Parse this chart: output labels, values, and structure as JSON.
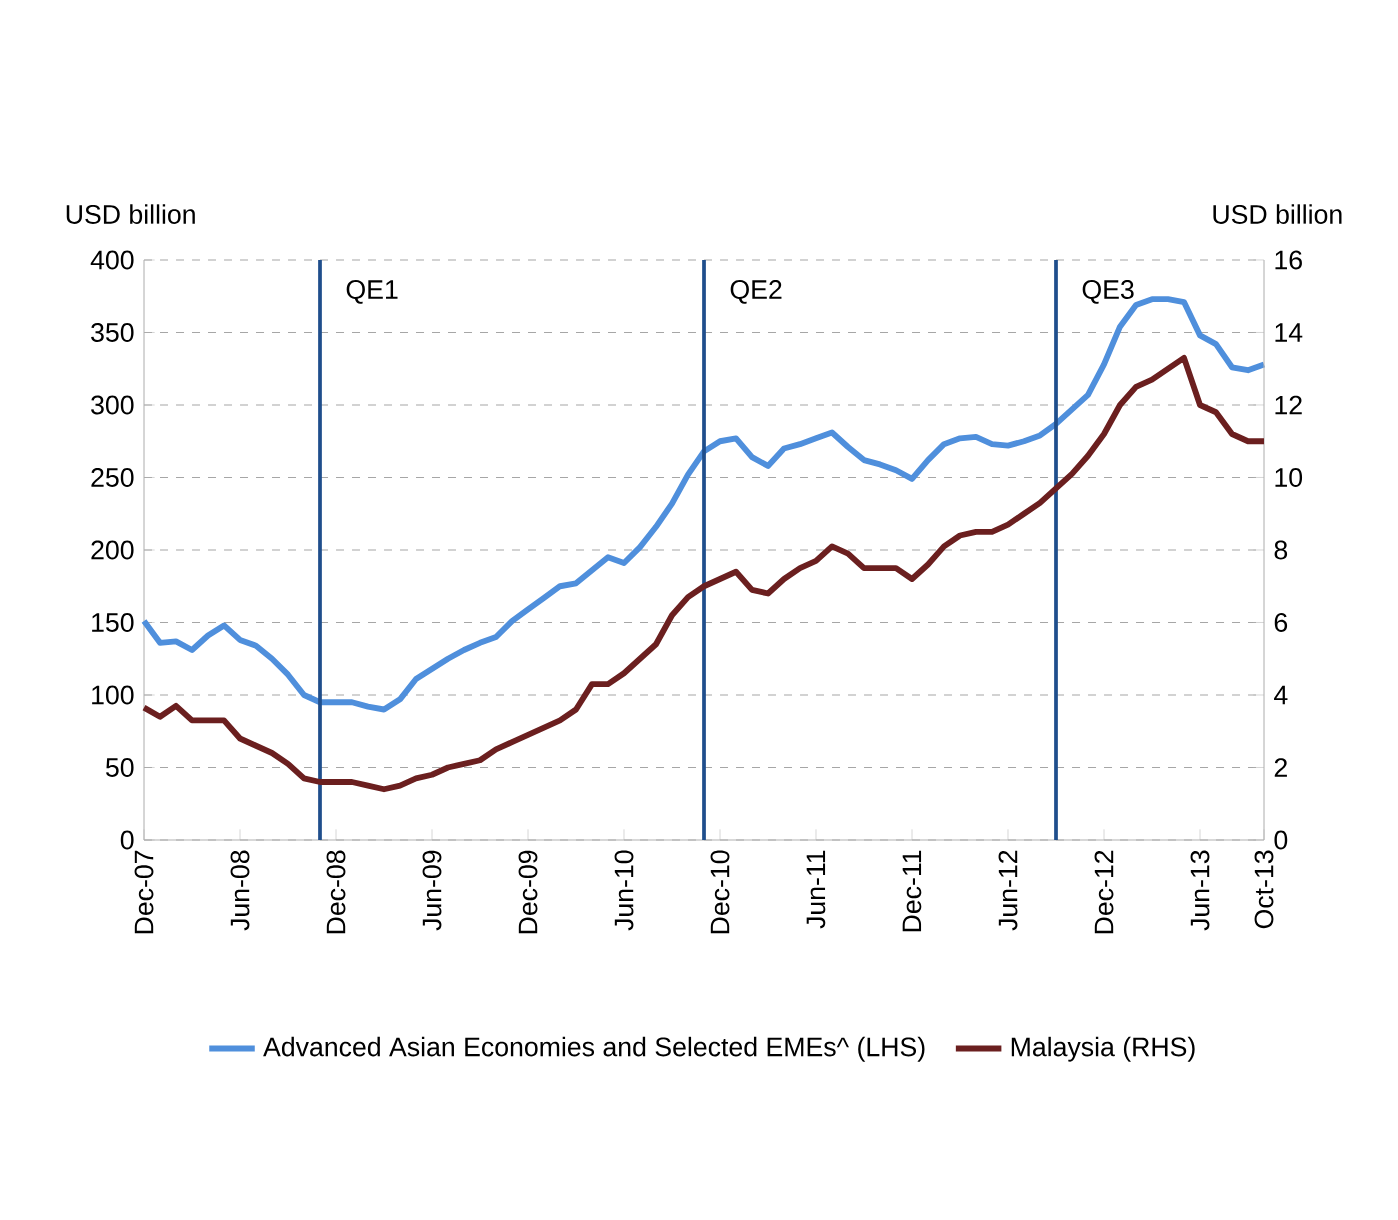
{
  "chart_data": {
    "type": "line",
    "ylabel": "USD billion",
    "y2label": "USD billion",
    "x": [
      "2007-12",
      "2008-01",
      "2008-02",
      "2008-03",
      "2008-04",
      "2008-05",
      "2008-06",
      "2008-07",
      "2008-08",
      "2008-09",
      "2008-10",
      "2008-11",
      "2008-12",
      "2009-01",
      "2009-02",
      "2009-03",
      "2009-04",
      "2009-05",
      "2009-06",
      "2009-07",
      "2009-08",
      "2009-09",
      "2009-10",
      "2009-11",
      "2009-12",
      "2010-01",
      "2010-02",
      "2010-03",
      "2010-04",
      "2010-05",
      "2010-06",
      "2010-07",
      "2010-08",
      "2010-09",
      "2010-10",
      "2010-11",
      "2010-12",
      "2011-01",
      "2011-02",
      "2011-03",
      "2011-04",
      "2011-05",
      "2011-06",
      "2011-07",
      "2011-08",
      "2011-09",
      "2011-10",
      "2011-11",
      "2011-12",
      "2012-01",
      "2012-02",
      "2012-03",
      "2012-04",
      "2012-05",
      "2012-06",
      "2012-07",
      "2012-08",
      "2012-09",
      "2012-10",
      "2012-11",
      "2012-12",
      "2013-01",
      "2013-02",
      "2013-03",
      "2013-04",
      "2013-05",
      "2013-06",
      "2013-07",
      "2013-08",
      "2013-09",
      "2013-10"
    ],
    "series": [
      {
        "name": "Advanced Asian Economies and Selected EMEs^ (LHS)",
        "color": "#4f8fdc",
        "values": [
          151,
          136,
          137,
          131,
          141,
          148,
          138,
          134,
          125,
          114,
          100,
          95,
          95,
          95,
          92,
          90,
          97,
          111,
          118,
          125,
          131,
          136,
          140,
          151,
          159,
          167,
          175,
          177,
          186,
          195,
          191,
          202,
          216,
          232,
          252,
          268,
          275,
          277,
          264,
          258,
          270,
          273,
          277,
          281,
          271,
          262,
          259,
          255,
          249,
          262,
          273,
          277,
          278,
          273,
          272,
          275,
          279,
          287,
          297,
          307,
          328,
          354,
          369,
          373,
          373,
          371,
          348,
          342,
          326,
          324,
          328
        ]
      },
      {
        "name": "Malaysia (RHS)",
        "color": "#6b1f1f",
        "axis": "y2",
        "values": [
          3.65,
          3.4,
          3.7,
          3.3,
          3.3,
          3.3,
          2.8,
          2.6,
          2.4,
          2.1,
          1.7,
          1.6,
          1.6,
          1.6,
          1.5,
          1.4,
          1.5,
          1.7,
          1.8,
          2.0,
          2.1,
          2.2,
          2.5,
          2.7,
          2.9,
          3.1,
          3.3,
          3.6,
          4.3,
          4.3,
          4.6,
          5.0,
          5.4,
          6.2,
          6.7,
          7.0,
          7.2,
          7.4,
          6.9,
          6.8,
          7.2,
          7.5,
          7.7,
          8.1,
          7.9,
          7.5,
          7.5,
          7.5,
          7.2,
          7.6,
          8.1,
          8.4,
          8.5,
          8.5,
          8.7,
          9.0,
          9.3,
          9.7,
          10.1,
          10.6,
          11.2,
          12.0,
          12.5,
          12.7,
          13.0,
          13.3,
          12.0,
          11.8,
          11.2,
          11.0,
          11.0
        ]
      }
    ],
    "xlim": [
      "2007-12",
      "2013-10"
    ],
    "xticks": [
      {
        "value": "2007-12",
        "label": "Dec-07"
      },
      {
        "value": "2008-06",
        "label": "Jun-08"
      },
      {
        "value": "2008-12",
        "label": "Dec-08"
      },
      {
        "value": "2009-06",
        "label": "Jun-09"
      },
      {
        "value": "2009-12",
        "label": "Dec-09"
      },
      {
        "value": "2010-06",
        "label": "Jun-10"
      },
      {
        "value": "2010-12",
        "label": "Dec-10"
      },
      {
        "value": "2011-06",
        "label": "Jun-11"
      },
      {
        "value": "2011-12",
        "label": "Dec-11"
      },
      {
        "value": "2012-06",
        "label": "Jun-12"
      },
      {
        "value": "2012-12",
        "label": "Dec-12"
      },
      {
        "value": "2013-06",
        "label": "Jun-13"
      },
      {
        "value": "2013-10",
        "label": "Oct-13"
      }
    ],
    "ylim": [
      0,
      400
    ],
    "yticks": [
      0,
      50,
      100,
      150,
      200,
      250,
      300,
      350,
      400
    ],
    "y2lim": [
      0,
      16
    ],
    "y2ticks": [
      0,
      2,
      4,
      6,
      8,
      10,
      12,
      14,
      16
    ],
    "ref_lines": [
      {
        "axis": "x",
        "value": "2008-11",
        "label": "QE1",
        "color": "#1f4e8c"
      },
      {
        "axis": "x",
        "value": "2010-11",
        "label": "QE2",
        "color": "#1f4e8c"
      },
      {
        "axis": "x",
        "value": "2012-09",
        "label": "QE3",
        "color": "#1f4e8c"
      }
    ],
    "grid": "y",
    "legend": "bottom",
    "marker": "none",
    "line_style": "solid"
  }
}
